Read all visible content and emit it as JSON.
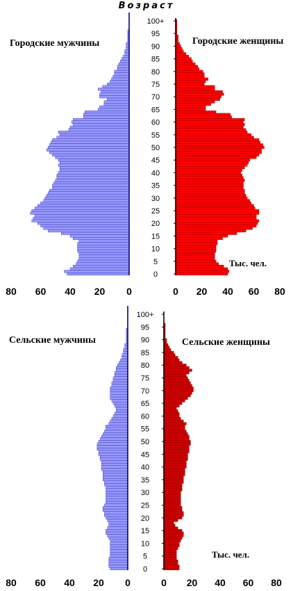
{
  "chart_data": [
    {
      "type": "bar",
      "panel": "urban",
      "title": "Возраст",
      "left_label": "Городские мужчины",
      "right_label": "Городские женщины",
      "unit_label": "Тыс. чел.",
      "age_ticks": [
        "0",
        "5",
        "10",
        "15",
        "20",
        "25",
        "30",
        "35",
        "40",
        "45",
        "50",
        "55",
        "60",
        "65",
        "70",
        "75",
        "80",
        "85",
        "90",
        "95",
        "100+"
      ],
      "x_ticks_left": [
        "80",
        "60",
        "40",
        "20",
        "0"
      ],
      "x_ticks_right": [
        "0",
        "20",
        "40",
        "60",
        "80"
      ],
      "xlim": [
        0,
        80
      ],
      "series": [
        {
          "name": "Городские мужчины",
          "color": "#9999ff",
          "values": [
            42,
            44,
            40,
            38,
            36,
            35,
            34,
            34,
            34,
            35,
            35,
            35,
            35,
            34,
            38,
            40,
            46,
            55,
            58,
            60,
            62,
            66,
            65,
            64,
            67,
            66,
            64,
            62,
            60,
            58,
            57,
            56,
            55,
            54,
            52,
            52,
            51,
            50,
            49,
            49,
            48,
            47,
            47,
            48,
            47,
            48,
            50,
            52,
            54,
            56,
            55,
            54,
            53,
            52,
            49,
            47,
            48,
            41,
            40,
            38,
            39,
            38,
            31,
            31,
            30,
            21,
            20,
            17,
            17,
            15,
            20,
            20,
            19,
            21,
            18,
            15,
            13,
            12,
            11,
            10,
            10,
            8,
            8,
            7,
            6,
            5,
            4,
            3,
            3,
            2,
            2,
            2,
            1,
            1,
            1,
            1,
            1,
            0,
            0,
            0,
            0
          ]
        },
        {
          "name": "Городские женщины",
          "color": "#ff0000",
          "values": [
            40,
            41,
            40,
            37,
            33,
            31,
            30,
            30,
            30,
            31,
            31,
            31,
            32,
            32,
            36,
            40,
            47,
            54,
            59,
            62,
            63,
            64,
            62,
            62,
            64,
            64,
            61,
            60,
            58,
            57,
            55,
            54,
            53,
            53,
            52,
            52,
            52,
            53,
            52,
            51,
            50,
            51,
            53,
            55,
            56,
            57,
            62,
            64,
            66,
            66,
            68,
            67,
            65,
            64,
            60,
            58,
            55,
            54,
            52,
            53,
            52,
            53,
            43,
            42,
            31,
            23,
            23,
            27,
            30,
            34,
            35,
            37,
            36,
            30,
            30,
            22,
            23,
            25,
            22,
            22,
            21,
            18,
            17,
            15,
            13,
            12,
            10,
            8,
            6,
            5,
            4,
            3,
            2,
            2,
            2,
            1,
            1,
            1,
            1,
            1,
            1
          ]
        }
      ]
    },
    {
      "type": "bar",
      "panel": "rural",
      "left_label": "Сельские мужчины",
      "right_label": "Сельские женщины",
      "unit_label": "Тыс. чел.",
      "age_ticks": [
        "0",
        "5",
        "10",
        "15",
        "20",
        "25",
        "30",
        "35",
        "40",
        "45",
        "50",
        "55",
        "60",
        "65",
        "70",
        "75",
        "80",
        "85",
        "90",
        "95",
        "100+"
      ],
      "x_ticks_left": [
        "80",
        "60",
        "40",
        "20",
        "0"
      ],
      "x_ticks_right": [
        "0",
        "20",
        "40",
        "60",
        "80"
      ],
      "xlim": [
        0,
        80
      ],
      "series": [
        {
          "name": "Сельские мужчины",
          "color": "#9999ff",
          "values": [
            12,
            13,
            13,
            13,
            13,
            12,
            12,
            12,
            12,
            12,
            12,
            12,
            13,
            14,
            15,
            15,
            14,
            13,
            13,
            14,
            15,
            16,
            16,
            17,
            17,
            16,
            15,
            15,
            15,
            15,
            15,
            15,
            15,
            16,
            16,
            17,
            17,
            17,
            17,
            18,
            18,
            18,
            18,
            19,
            19,
            20,
            20,
            21,
            21,
            21,
            20,
            19,
            18,
            17,
            16,
            15,
            15,
            13,
            12,
            11,
            10,
            9,
            8,
            8,
            9,
            10,
            11,
            12,
            12,
            12,
            12,
            12,
            11,
            11,
            10,
            10,
            9,
            9,
            8,
            8,
            7,
            6,
            5,
            4,
            4,
            3,
            3,
            2,
            2,
            1,
            1,
            1,
            1,
            1,
            1,
            0,
            0,
            0,
            0,
            0,
            0
          ]
        },
        {
          "name": "Сельские женщины",
          "color": "#cc0000",
          "values": [
            11,
            11,
            10,
            10,
            9,
            9,
            9,
            9,
            10,
            11,
            11,
            12,
            13,
            14,
            14,
            13,
            10,
            8,
            7,
            10,
            13,
            14,
            14,
            13,
            13,
            12,
            12,
            12,
            12,
            12,
            12,
            13,
            13,
            13,
            14,
            14,
            14,
            15,
            15,
            15,
            16,
            16,
            16,
            17,
            17,
            17,
            18,
            18,
            18,
            19,
            19,
            18,
            18,
            17,
            16,
            15,
            15,
            16,
            14,
            12,
            11,
            11,
            10,
            9,
            11,
            13,
            15,
            17,
            19,
            20,
            21,
            21,
            20,
            19,
            18,
            17,
            16,
            18,
            20,
            18,
            16,
            13,
            11,
            10,
            8,
            7,
            5,
            4,
            3,
            2,
            2,
            1,
            1,
            1,
            1,
            1,
            1,
            0,
            0,
            0,
            0
          ]
        }
      ]
    }
  ]
}
